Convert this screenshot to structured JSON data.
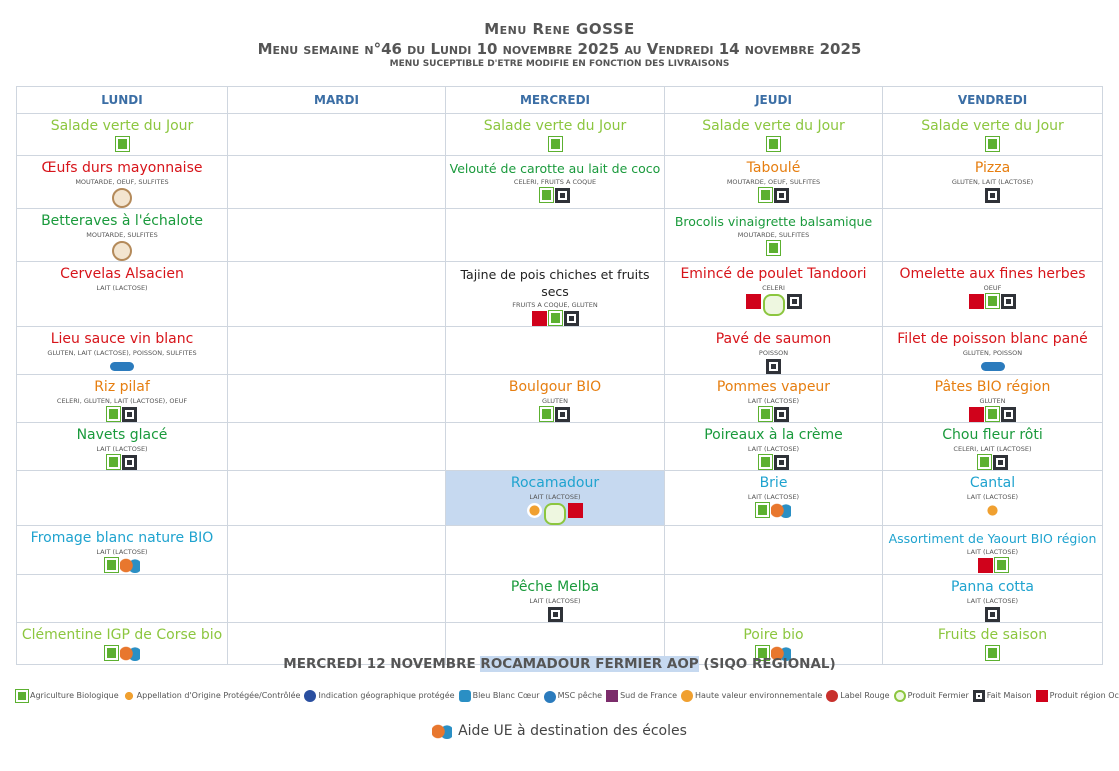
{
  "header": {
    "title": "Menu Rene GOSSE",
    "subtitle": "Menu semaine n°46 du Lundi 10 novembre 2025 au Vendredi 14 novembre 2025",
    "note": "MENU SUCEPTIBLE D'ETRE MODIFIE EN FONCTION DES LIVRAISONS"
  },
  "table": {
    "columns": [
      "LUNDI",
      "MARDI",
      "MERCREDI",
      "JEUDI",
      "VENDREDI"
    ],
    "rows": [
      [
        {
          "name": "Salade verte du Jour"
        },
        null,
        {
          "name": "Salade verte du Jour"
        },
        {
          "name": "Salade verte du Jour"
        },
        {
          "name": "Salade verte du Jour"
        }
      ],
      [
        {
          "name": "Œufs durs mayonnaise",
          "allergens": "MOUTARDE, OEUF, SULFITES"
        },
        null,
        {
          "name": "Velouté de carotte au lait de coco",
          "allergens": "CELERI, FRUITS A COQUE"
        },
        {
          "name": "Taboulé",
          "allergens": "MOUTARDE, OEUF, SULFITES"
        },
        {
          "name": "Pizza",
          "allergens": "GLUTEN, LAIT (LACTOSE)"
        }
      ],
      [
        {
          "name": "Betteraves à l'échalote",
          "allergens": "MOUTARDE, SULFITES"
        },
        null,
        null,
        {
          "name": "Brocolis vinaigrette balsamique",
          "allergens": "MOUTARDE, SULFITES"
        },
        null
      ],
      [
        {
          "name": "Cervelas Alsacien",
          "allergens": "LAIT (LACTOSE)"
        },
        null,
        {
          "name": "Tajine de pois chiches et fruits secs",
          "allergens": "FRUITS A COQUE, GLUTEN"
        },
        {
          "name": "Emincé de poulet Tandoori",
          "allergens": "CELERI"
        },
        {
          "name": "Omelette aux fines herbes",
          "allergens": "OEUF"
        }
      ],
      [
        {
          "name": "Lieu sauce vin blanc",
          "allergens": "GLUTEN, LAIT (LACTOSE), POISSON, SULFITES"
        },
        null,
        null,
        {
          "name": "Pavé de saumon",
          "allergens": "POISSON"
        },
        {
          "name": "Filet de poisson blanc pané",
          "allergens": "GLUTEN, POISSON"
        }
      ],
      [
        {
          "name": "Riz pilaf",
          "allergens": "CELERI, GLUTEN, LAIT (LACTOSE), OEUF"
        },
        null,
        {
          "name": "Boulgour BIO",
          "allergens": "GLUTEN"
        },
        {
          "name": "Pommes vapeur",
          "allergens": "LAIT (LACTOSE)"
        },
        {
          "name": "Pâtes BIO région",
          "allergens": "GLUTEN"
        }
      ],
      [
        {
          "name": "Navets glacé",
          "allergens": "LAIT (LACTOSE)"
        },
        null,
        null,
        {
          "name": "Poireaux à la crème",
          "allergens": "LAIT (LACTOSE)"
        },
        {
          "name": "Chou fleur rôti",
          "allergens": "CELERI, LAIT (LACTOSE)"
        }
      ],
      [
        null,
        null,
        {
          "name": "Rocamadour",
          "allergens": "LAIT (LACTOSE)"
        },
        {
          "name": "Brie",
          "allergens": "LAIT (LACTOSE)"
        },
        {
          "name": "Cantal",
          "allergens": "LAIT (LACTOSE)"
        }
      ],
      [
        {
          "name": "Fromage blanc nature BIO",
          "allergens": "LAIT (LACTOSE)"
        },
        null,
        null,
        null,
        {
          "name": "Assortiment de Yaourt BIO région",
          "allergens": "LAIT (LACTOSE)"
        }
      ],
      [
        null,
        null,
        {
          "name": "Pêche Melba",
          "allergens": "LAIT (LACTOSE)"
        },
        null,
        {
          "name": "Panna cotta",
          "allergens": "LAIT (LACTOSE)"
        }
      ],
      [
        {
          "name": "Clémentine IGP de Corse bio"
        },
        null,
        null,
        {
          "name": "Poire bio"
        },
        {
          "name": "Fruits de saison"
        }
      ]
    ]
  },
  "footer": {
    "date": "MERCREDI 12 NOVEMBRE",
    "highlight": "ROCAMADOUR FERMIER AOP",
    "note": "(SIQO REGIONAL)"
  },
  "legend": [
    "Agriculture Biologique",
    "Appellation d'Origine Protégée/Contrôlée",
    "Indication géographique protégée",
    "Bleu Blanc Cœur",
    "MSC pêche",
    "Sud de France",
    "Haute valeur environnementale",
    "Label Rouge",
    "Produit Fermier",
    "Fait Maison",
    "Produit région Occitanie"
  ],
  "eu_note": "Aide UE à destination des écoles"
}
